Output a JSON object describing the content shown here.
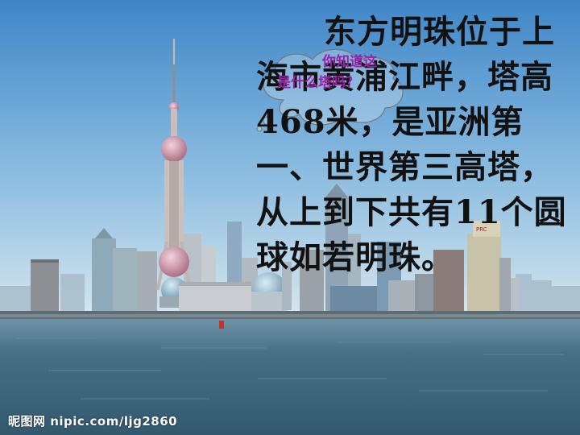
{
  "slide": {
    "paragraph_lines": [
      "东方明珠位于上",
      "海市黄浦江畔，塔高",
      "468米，是亚洲第",
      "一、世界第三高塔，",
      "从上到下共有11个圆",
      "球如若明珠。"
    ],
    "bubble": {
      "line1": "你知道这",
      "line2": "是什么塔吗？"
    },
    "watermark": "昵图网 nipic.com/ljg2860",
    "colors": {
      "sky_top": "#3f86c8",
      "sky_bottom": "#d6e6ee",
      "water": "#3f6e88",
      "text": "#111111",
      "bubble_text": "#9b1fa3"
    }
  }
}
